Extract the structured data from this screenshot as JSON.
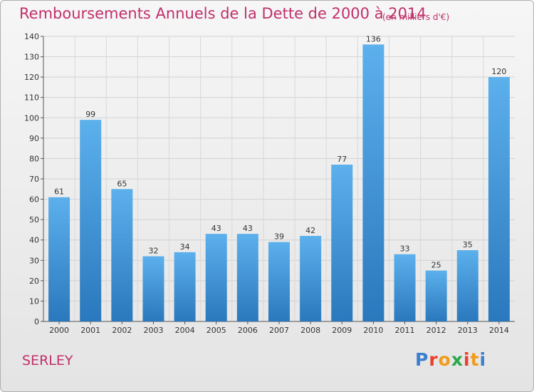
{
  "title": "Remboursements Annuels de la Dette de 2000 à 2014",
  "subtitle": "(en milliers d'€)",
  "commune": "SERLEY",
  "logo": {
    "letters": [
      "P",
      "r",
      "o",
      "x",
      "i",
      "t",
      "i"
    ],
    "colors": [
      "#3a7fd0",
      "#e8402a",
      "#f29a1a",
      "#2aa84a",
      "#e8402a",
      "#f29a1a",
      "#3a7fd0"
    ]
  },
  "chart_data": {
    "type": "bar",
    "categories": [
      "2000",
      "2001",
      "2002",
      "2003",
      "2004",
      "2005",
      "2006",
      "2007",
      "2008",
      "2009",
      "2010",
      "2011",
      "2012",
      "2013",
      "2014"
    ],
    "values": [
      61,
      99,
      65,
      32,
      34,
      43,
      43,
      39,
      42,
      77,
      136,
      33,
      25,
      35,
      120
    ],
    "ylim": [
      0,
      140
    ],
    "yticks": [
      0,
      10,
      20,
      30,
      40,
      50,
      60,
      70,
      80,
      90,
      100,
      110,
      120,
      130,
      140
    ],
    "xlabel": "",
    "ylabel": "",
    "grid": true,
    "bar_color": "#3a8fd8"
  }
}
